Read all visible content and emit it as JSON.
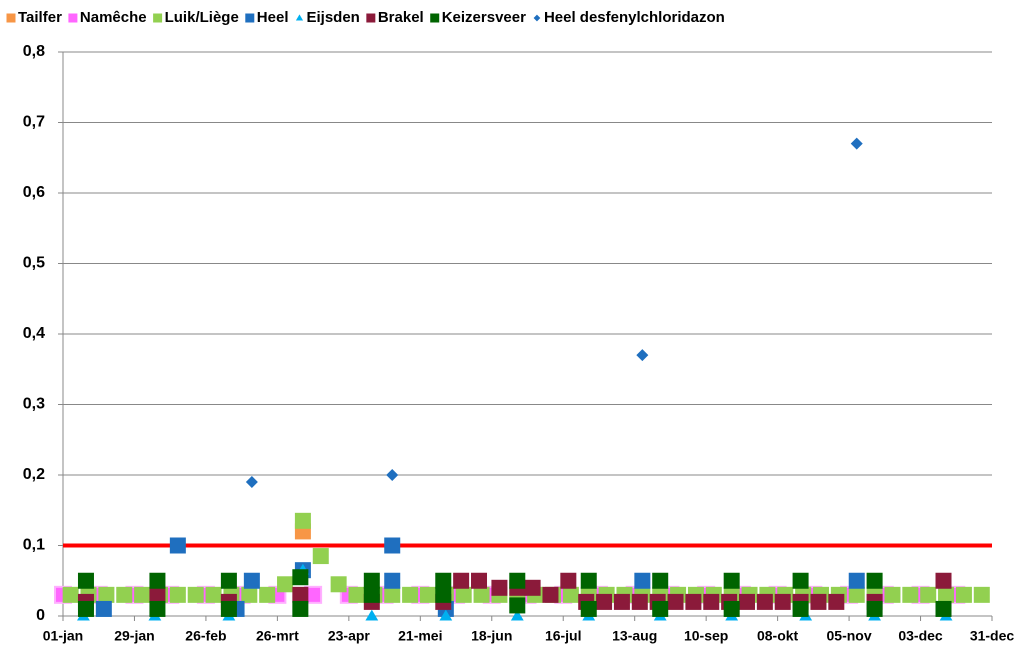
{
  "chart_data": {
    "type": "scatter",
    "xlim": [
      0,
      364
    ],
    "xticks": [
      {
        "value": 0,
        "label": "01-jan"
      },
      {
        "value": 28,
        "label": "29-jan"
      },
      {
        "value": 56,
        "label": "26-feb"
      },
      {
        "value": 84,
        "label": "26-mrt"
      },
      {
        "value": 112,
        "label": "23-apr"
      },
      {
        "value": 140,
        "label": "21-mei"
      },
      {
        "value": 168,
        "label": "18-jun"
      },
      {
        "value": 196,
        "label": "16-jul"
      },
      {
        "value": 224,
        "label": "13-aug"
      },
      {
        "value": 252,
        "label": "10-sep"
      },
      {
        "value": 280,
        "label": "08-okt"
      },
      {
        "value": 308,
        "label": "05-nov"
      },
      {
        "value": 336,
        "label": "03-dec"
      },
      {
        "value": 364,
        "label": "31-dec"
      }
    ],
    "ylim": [
      0,
      0.8
    ],
    "yticks": [
      0,
      {
        "value": 0.1,
        "label": "0,1"
      },
      {
        "value": 0.2,
        "label": "0,2"
      },
      {
        "value": 0.3,
        "label": "0,3"
      },
      {
        "value": 0.4,
        "label": "0,4"
      },
      {
        "value": 0.5,
        "label": "0,5"
      },
      {
        "value": 0.6,
        "label": "0,6"
      },
      {
        "value": 0.7,
        "label": "0,7"
      },
      {
        "value": 0.8,
        "label": "0,8"
      }
    ],
    "grid": true,
    "reference_line": {
      "value": 0.1,
      "color": "#ff0000"
    },
    "legend": "top",
    "series": [
      {
        "name": "Tailfer",
        "color": "#f79646",
        "marker": "square",
        "x": [
          94
        ],
        "values": [
          0.12
        ]
      },
      {
        "name": "Namêche",
        "color": "#ff66ff",
        "marker": "square",
        "x": [
          0,
          14,
          28,
          42,
          56,
          70,
          84,
          98,
          112,
          126,
          140,
          154,
          168,
          182,
          196,
          210,
          224,
          238,
          252,
          266,
          280,
          294,
          308,
          322,
          336,
          350
        ],
        "values": [
          0.03,
          0.03,
          0.03,
          0.03,
          0.03,
          0.03,
          0.03,
          0.03,
          0.03,
          0.03,
          0.03,
          0.03,
          0.03,
          0.03,
          0.03,
          0.03,
          0.03,
          0.03,
          0.03,
          0.03,
          0.03,
          0.03,
          0.03,
          0.03,
          0.03,
          0.03
        ]
      },
      {
        "name": "Luik/Liège",
        "color": "#92d050",
        "marker": "square",
        "x": [
          3,
          10,
          17,
          24,
          31,
          38,
          45,
          52,
          59,
          66,
          73,
          80,
          87,
          94,
          101,
          108,
          115,
          122,
          129,
          136,
          143,
          150,
          157,
          164,
          171,
          178,
          185,
          192,
          199,
          206,
          213,
          220,
          227,
          234,
          241,
          248,
          255,
          262,
          269,
          276,
          283,
          290,
          297,
          304,
          311,
          318,
          325,
          332,
          339,
          346,
          353,
          360
        ],
        "values": [
          0.03,
          0.03,
          0.03,
          0.03,
          0.03,
          0.03,
          0.03,
          0.03,
          0.03,
          0.03,
          0.03,
          0.03,
          0.045,
          0.135,
          0.085,
          0.045,
          0.03,
          0.03,
          0.03,
          0.03,
          0.03,
          0.03,
          0.03,
          0.03,
          0.03,
          0.03,
          0.03,
          0.03,
          0.03,
          0.03,
          0.03,
          0.03,
          0.03,
          0.03,
          0.03,
          0.03,
          0.03,
          0.03,
          0.03,
          0.03,
          0.03,
          0.03,
          0.03,
          0.03,
          0.03,
          0.03,
          0.03,
          0.03,
          0.03,
          0.03,
          0.03,
          0.03
        ]
      },
      {
        "name": "Heel",
        "color": "#1f6fbf",
        "marker": "square",
        "x": [
          16,
          45,
          68,
          74,
          94,
          129,
          129,
          150,
          227,
          311
        ],
        "values": [
          0.01,
          0.1,
          0.01,
          0.05,
          0.065,
          0.1,
          0.05,
          0.01,
          0.05,
          0.05
        ]
      },
      {
        "name": "Eijsden",
        "color": "#00b0f0",
        "marker": "triangle",
        "x": [
          8,
          36,
          65,
          94,
          121,
          150,
          178,
          206,
          234,
          262,
          291,
          318,
          346
        ],
        "values": [
          0,
          0,
          0,
          0.065,
          0,
          0,
          0,
          0,
          0,
          0,
          0,
          0,
          0
        ]
      },
      {
        "name": "Brakel",
        "color": "#8b1a3a",
        "marker": "square",
        "x": [
          9,
          37,
          65,
          93,
          121,
          149,
          156,
          163,
          171,
          178,
          184,
          191,
          198,
          205,
          212,
          219,
          226,
          233,
          240,
          247,
          254,
          261,
          268,
          275,
          282,
          289,
          296,
          303,
          318,
          345
        ],
        "values": [
          0.02,
          0.03,
          0.02,
          0.03,
          0.02,
          0.02,
          0.05,
          0.05,
          0.04,
          0.04,
          0.04,
          0.03,
          0.05,
          0.02,
          0.02,
          0.02,
          0.02,
          0.02,
          0.02,
          0.02,
          0.02,
          0.02,
          0.02,
          0.02,
          0.02,
          0.02,
          0.02,
          0.02,
          0.02,
          0.05
        ]
      },
      {
        "name": "Keizersveer",
        "color": "#006400",
        "marker": "square",
        "x": [
          9,
          9,
          37,
          37,
          65,
          65,
          93,
          93,
          121,
          121,
          149,
          149,
          178,
          178,
          206,
          206,
          234,
          234,
          262,
          262,
          289,
          289,
          318,
          318,
          345
        ],
        "values": [
          0.05,
          0.01,
          0.05,
          0.01,
          0.05,
          0.01,
          0.055,
          0.01,
          0.05,
          0.03,
          0.05,
          0.03,
          0.05,
          0.015,
          0.05,
          0.01,
          0.05,
          0.01,
          0.05,
          0.01,
          0.05,
          0.01,
          0.05,
          0.01,
          0.01
        ]
      },
      {
        "name": "Heel desfenylchloridazon",
        "color": "#1f6fbf",
        "marker": "diamond",
        "x": [
          74,
          129,
          227,
          311
        ],
        "values": [
          0.19,
          0.2,
          0.37,
          0.67
        ]
      }
    ]
  }
}
